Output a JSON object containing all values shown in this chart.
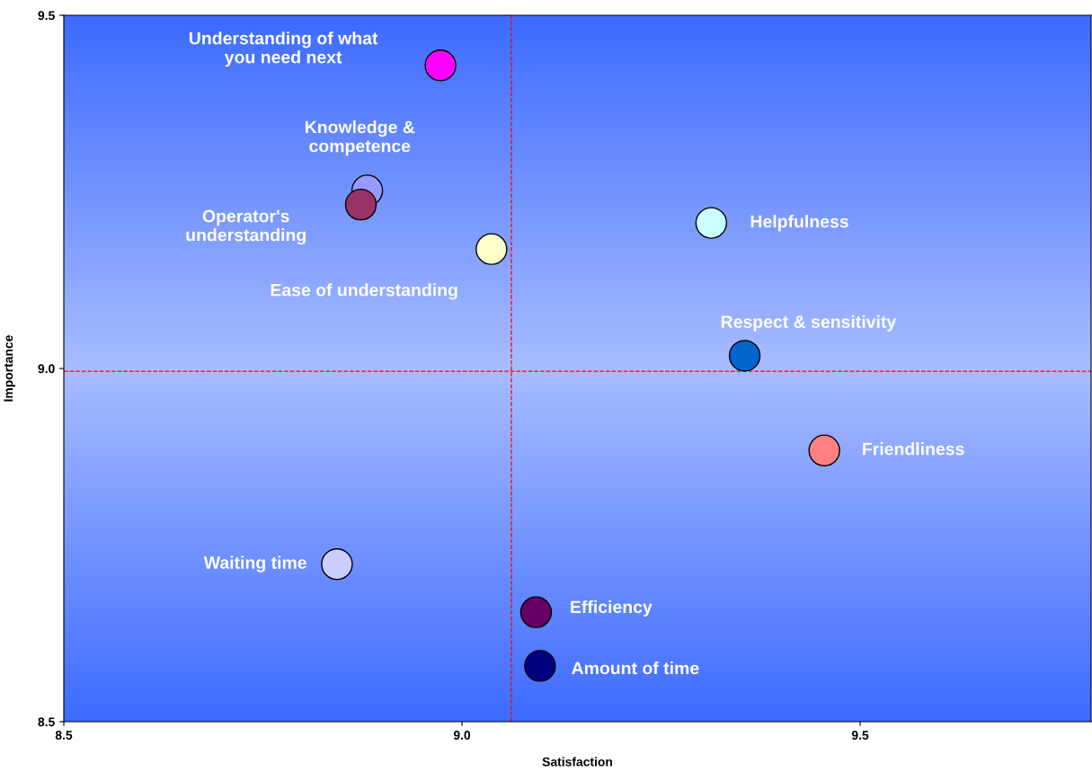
{
  "chart_data": {
    "type": "scatter",
    "xlabel": "Satisfaction",
    "ylabel": "Importance",
    "xlim": [
      8.5,
      9.79
    ],
    "ylim": [
      8.5,
      9.5
    ],
    "xticks": [
      8.5,
      {
        "value": 9,
        "label": "9.0"
      },
      9.5
    ],
    "yticks": [
      8.5,
      {
        "value": 9,
        "label": "9.0"
      },
      9.5
    ],
    "grid": false,
    "legend": false,
    "marker": "circle",
    "ref_lines": [
      {
        "axis": "x",
        "value": 9.062,
        "color": "#ff0000",
        "line_style": "dashed"
      },
      {
        "axis": "y",
        "value": 8.996,
        "color": "#ff0000",
        "line_style": "dashed"
      }
    ],
    "series": [
      {
        "name": "Understanding of what\nyou need next",
        "color": "#ff00ff",
        "x": [
          8.973
        ],
        "values": [
          9.429
        ]
      },
      {
        "name": "Knowledge &\ncompetence",
        "color": "#9999ff",
        "x": [
          8.881
        ],
        "values": [
          9.252
        ]
      },
      {
        "name": "Operator's\nunderstanding",
        "color": "#993366",
        "x": [
          8.873
        ],
        "values": [
          9.232
        ]
      },
      {
        "name": "Ease of understanding",
        "color": "#ffffcc",
        "x": [
          9.037
        ],
        "values": [
          9.169
        ]
      },
      {
        "name": "Helpfulness",
        "color": "#ccffff",
        "x": [
          9.313
        ],
        "values": [
          9.206
        ]
      },
      {
        "name": "Respect & sensitivity",
        "color": "#0066cc",
        "x": [
          9.355
        ],
        "values": [
          9.018
        ]
      },
      {
        "name": "Friendliness",
        "color": "#ff8080",
        "x": [
          9.455
        ],
        "values": [
          8.884
        ]
      },
      {
        "name": "Waiting time",
        "color": "#ccccff",
        "x": [
          8.843
        ],
        "values": [
          8.723
        ]
      },
      {
        "name": "Efficiency",
        "color": "#660066",
        "x": [
          9.093
        ],
        "values": [
          8.655
        ]
      },
      {
        "name": "Amount of time",
        "color": "#000080",
        "x": [
          9.098
        ],
        "values": [
          8.579
        ]
      }
    ]
  }
}
